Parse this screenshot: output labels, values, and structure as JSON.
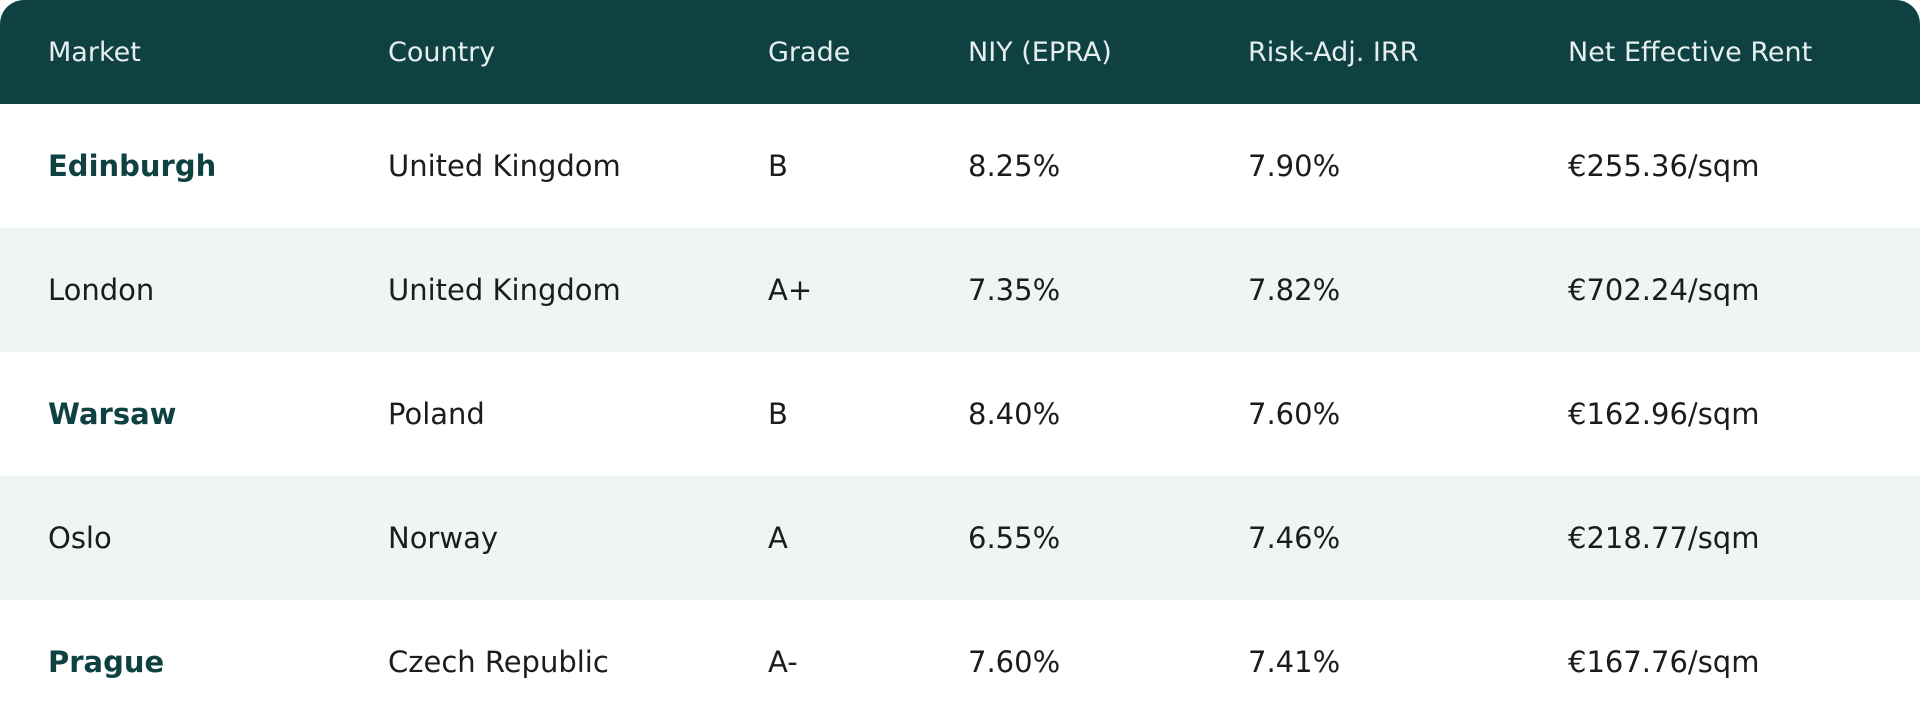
{
  "table": {
    "columns": [
      "Market",
      "Country",
      "Grade",
      "NIY (EPRA)",
      "Risk-Adj. IRR",
      "Net Effective Rent"
    ],
    "rows": [
      {
        "market": "Edinburgh",
        "country": "United Kingdom",
        "grade": "B",
        "niy": "8.25%",
        "irr": "7.90%",
        "rent": "€255.36/sqm",
        "highlight": true
      },
      {
        "market": "London",
        "country": "United Kingdom",
        "grade": "A+",
        "niy": "7.35%",
        "irr": "7.82%",
        "rent": "€702.24/sqm",
        "highlight": false
      },
      {
        "market": "Warsaw",
        "country": "Poland",
        "grade": "B",
        "niy": "8.40%",
        "irr": "7.60%",
        "rent": "€162.96/sqm",
        "highlight": true
      },
      {
        "market": "Oslo",
        "country": "Norway",
        "grade": "A",
        "niy": "6.55%",
        "irr": "7.46%",
        "rent": "€218.77/sqm",
        "highlight": false
      },
      {
        "market": "Prague",
        "country": "Czech Republic",
        "grade": "A-",
        "niy": "7.60%",
        "irr": "7.41%",
        "rent": "€167.76/sqm",
        "highlight": true
      }
    ]
  },
  "colors": {
    "header_bg": "#0f4143",
    "header_text": "#e6efee",
    "accent": "#0f4143",
    "stripe": "#eff5f3",
    "text": "#1c1c1c"
  }
}
